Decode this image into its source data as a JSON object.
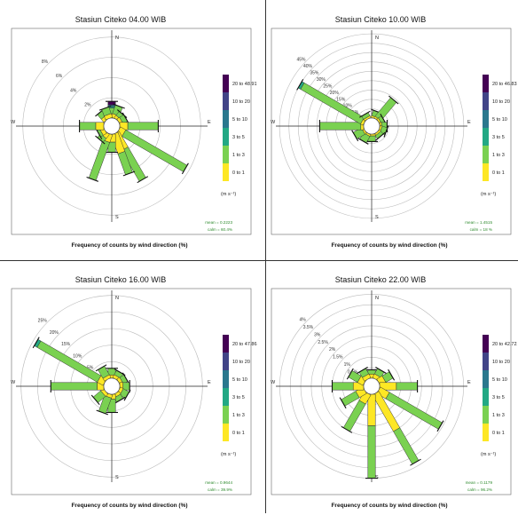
{
  "chart_data": [
    {
      "type": "windrose",
      "title": "Stasiun Citeko 04.00 WIB",
      "xlabel": "Frequency of counts by wind direction (%)",
      "compass": [
        "N",
        "E",
        "S",
        "W"
      ],
      "ring_labels": [
        "2%",
        "4%",
        "6%",
        "8%"
      ],
      "ring_values": [
        2,
        4,
        6,
        8
      ],
      "rmax": 8.5,
      "legend": [
        "20 to 48.917",
        "10 to 20",
        "5 to 10",
        "3 to 5",
        "1 to 3",
        "0 to 1"
      ],
      "units": "(m s⁻¹)",
      "stats": [
        "mean = 0.2223",
        "calm = 60.4%"
      ],
      "petals": [
        {
          "dir": 0,
          "values": [
            0.4,
            0.6,
            0.15,
            0.15,
            0,
            0.35
          ]
        },
        {
          "dir": 20,
          "values": [
            0.4,
            0.9,
            0,
            0,
            0,
            0
          ]
        },
        {
          "dir": 40,
          "values": [
            0.3,
            0.5,
            0,
            0,
            0,
            0
          ]
        },
        {
          "dir": 60,
          "values": [
            0.3,
            0.5,
            0,
            0,
            0,
            0
          ]
        },
        {
          "dir": 90,
          "values": [
            0.8,
            3.0,
            0,
            0,
            0,
            0
          ]
        },
        {
          "dir": 120,
          "values": [
            0.6,
            7.0,
            0,
            0,
            0,
            0
          ]
        },
        {
          "dir": 150,
          "values": [
            1.8,
            3.5,
            0,
            0,
            0,
            0
          ]
        },
        {
          "dir": 160,
          "values": [
            2.0,
            2.2,
            0,
            0,
            0,
            0
          ]
        },
        {
          "dir": 180,
          "values": [
            0.8,
            1.0,
            0,
            0,
            0,
            0
          ]
        },
        {
          "dir": 200,
          "values": [
            0.8,
            4.0,
            0,
            0,
            0,
            0
          ]
        },
        {
          "dir": 220,
          "values": [
            0.5,
            0.5,
            0,
            0,
            0,
            0
          ]
        },
        {
          "dir": 240,
          "values": [
            0.4,
            0.3,
            0,
            0,
            0,
            0
          ]
        },
        {
          "dir": 270,
          "values": [
            0.8,
            1.6,
            0,
            0,
            0,
            0
          ]
        },
        {
          "dir": 320,
          "values": [
            0.4,
            0.6,
            0,
            0,
            0,
            0
          ]
        },
        {
          "dir": 340,
          "values": [
            0.4,
            0.7,
            0,
            0,
            0,
            0
          ]
        }
      ]
    },
    {
      "type": "windrose",
      "title": "Stasiun Citeko 10.00 WIB",
      "xlabel": "Frequency of counts by wind direction (%)",
      "compass": [
        "N",
        "E",
        "S",
        "W"
      ],
      "ring_labels": [
        "5%",
        "10%",
        "15%",
        "20%",
        "25%",
        "30%",
        "35%",
        "40%",
        "45%"
      ],
      "ring_values": [
        5,
        10,
        15,
        20,
        25,
        30,
        35,
        40,
        45
      ],
      "rmax": 46,
      "legend": [
        "20 to 46.833",
        "10 to 20",
        "5 to 10",
        "3 to 5",
        "1 to 3",
        "0 to 1"
      ],
      "units": "(m s⁻¹)",
      "stats": [
        "mean = 1.4515",
        "calm = 18 %"
      ],
      "petals": [
        {
          "dir": 20,
          "values": [
            1,
            3,
            0,
            0,
            0,
            0
          ]
        },
        {
          "dir": 40,
          "values": [
            1,
            13,
            0,
            0,
            0,
            0
          ]
        },
        {
          "dir": 60,
          "values": [
            1,
            2,
            0,
            0,
            0,
            0
          ]
        },
        {
          "dir": 90,
          "values": [
            1,
            3,
            0,
            0,
            0,
            0
          ]
        },
        {
          "dir": 110,
          "values": [
            1,
            3,
            0,
            0,
            0,
            0
          ]
        },
        {
          "dir": 140,
          "values": [
            1,
            2,
            0,
            0,
            0,
            0
          ]
        },
        {
          "dir": 180,
          "values": [
            1,
            3,
            0,
            0,
            0,
            0
          ]
        },
        {
          "dir": 210,
          "values": [
            1,
            4,
            0,
            0,
            0,
            0
          ]
        },
        {
          "dir": 240,
          "values": [
            1,
            5,
            0,
            0,
            0,
            0
          ]
        },
        {
          "dir": 270,
          "values": [
            1.5,
            22,
            0,
            0,
            0,
            0
          ]
        },
        {
          "dir": 300,
          "values": [
            1.5,
            37,
            1.5,
            0,
            0,
            0
          ]
        },
        {
          "dir": 330,
          "values": [
            1,
            2,
            0,
            0,
            0,
            0
          ]
        }
      ]
    },
    {
      "type": "windrose",
      "title": "Stasiun Citeko 16.00 WIB",
      "xlabel": "Frequency of counts by wind direction (%)",
      "compass": [
        "N",
        "E",
        "S",
        "W"
      ],
      "ring_labels": [
        "5%",
        "10%",
        "15%",
        "20%",
        "25%"
      ],
      "ring_values": [
        5,
        10,
        15,
        20,
        25
      ],
      "rmax": 26,
      "legend": [
        "20 to 47.861",
        "10 to 20",
        "5 to 10",
        "3 to 5",
        "1 to 3",
        "0 to 1"
      ],
      "units": "(m s⁻¹)",
      "stats": [
        "mean = 0.9644",
        "calm = 39.9%"
      ],
      "petals": [
        {
          "dir": 0,
          "values": [
            1,
            2,
            0,
            0,
            0,
            0
          ]
        },
        {
          "dir": 30,
          "values": [
            1,
            1.5,
            0,
            0,
            0,
            0
          ]
        },
        {
          "dir": 60,
          "values": [
            1,
            1.5,
            0,
            0,
            0,
            0
          ]
        },
        {
          "dir": 90,
          "values": [
            1,
            2,
            0,
            0,
            0,
            0
          ]
        },
        {
          "dir": 120,
          "values": [
            1,
            2,
            0,
            0,
            0,
            0
          ]
        },
        {
          "dir": 150,
          "values": [
            1,
            1.5,
            0,
            0,
            0,
            0
          ]
        },
        {
          "dir": 180,
          "values": [
            1.5,
            4,
            0,
            0,
            0,
            0
          ]
        },
        {
          "dir": 200,
          "values": [
            1,
            5,
            0,
            0,
            0,
            0
          ]
        },
        {
          "dir": 230,
          "values": [
            1,
            3,
            0,
            0,
            0,
            0
          ]
        },
        {
          "dir": 270,
          "values": [
            2,
            14,
            0,
            0,
            0,
            0
          ]
        },
        {
          "dir": 300,
          "values": [
            2,
            21,
            1,
            0,
            0,
            0
          ]
        },
        {
          "dir": 330,
          "values": [
            1,
            3,
            0,
            0,
            0,
            0
          ]
        }
      ]
    },
    {
      "type": "windrose",
      "title": "Stasiun Citeko 22.00 WIB",
      "xlabel": "Frequency of counts by wind direction (%)",
      "compass": [
        "N",
        "E",
        "S",
        "W"
      ],
      "ring_labels": [
        "0.5%",
        "1%",
        "1.5%",
        "2%",
        "2.5%",
        "3%",
        "3.5%",
        "4%"
      ],
      "ring_values": [
        0.5,
        1,
        1.5,
        2,
        2.5,
        3,
        3.5,
        4
      ],
      "rmax": 4.1,
      "legend": [
        "20 to 42.722",
        "10 to 20",
        "5 to 10",
        "3 to 5",
        "1 to 3",
        "0 to 1"
      ],
      "units": "(m s⁻¹)",
      "stats": [
        "mean = 0.1179",
        "calm = 96.2%"
      ],
      "petals": [
        {
          "dir": 0,
          "values": [
            0.2,
            0.2,
            0,
            0,
            0,
            0
          ]
        },
        {
          "dir": 30,
          "values": [
            0.2,
            0.3,
            0,
            0,
            0,
            0
          ]
        },
        {
          "dir": 60,
          "values": [
            0.3,
            0.4,
            0,
            0,
            0,
            0
          ]
        },
        {
          "dir": 90,
          "values": [
            0.8,
            1.0,
            0,
            0,
            0,
            0
          ]
        },
        {
          "dir": 120,
          "values": [
            0.5,
            2.9,
            0,
            0,
            0,
            0
          ]
        },
        {
          "dir": 150,
          "values": [
            2.0,
            1.8,
            0,
            0,
            0,
            0
          ]
        },
        {
          "dir": 180,
          "values": [
            1.5,
            2.5,
            0,
            0,
            0,
            0
          ]
        },
        {
          "dir": 210,
          "values": [
            0.5,
            1.5,
            0,
            0,
            0,
            0
          ]
        },
        {
          "dir": 240,
          "values": [
            0.4,
            0.8,
            0,
            0,
            0,
            0
          ]
        },
        {
          "dir": 270,
          "values": [
            0.5,
            1.0,
            0,
            0,
            0,
            0
          ]
        },
        {
          "dir": 300,
          "values": [
            0.3,
            0.5,
            0,
            0,
            0,
            0
          ]
        },
        {
          "dir": 330,
          "values": [
            0.2,
            0.3,
            0,
            0,
            0,
            0
          ]
        }
      ]
    }
  ],
  "colors": {
    "speed_bins": [
      "#fde725",
      "#7ad151",
      "#22a884",
      "#2a788e",
      "#414487",
      "#440154"
    ],
    "grid": "#bbbbbb",
    "axis": "#222222",
    "stats": "#2e8b2e"
  }
}
